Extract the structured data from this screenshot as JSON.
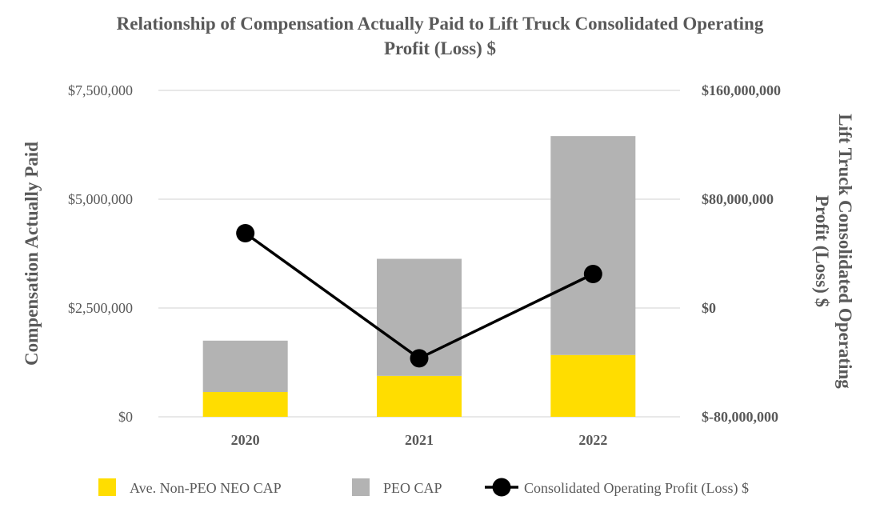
{
  "chart_data": {
    "type": "bar+line",
    "title_line1": "Relationship of Compensation Actually Paid to Lift Truck Consolidated Operating",
    "title_line2": "Profit (Loss) $",
    "categories": [
      "2020",
      "2021",
      "2022"
    ],
    "y_left": {
      "label": "Compensation Actually Paid",
      "range": [
        0,
        7500000
      ],
      "ticks": [
        0,
        2500000,
        5000000,
        7500000
      ],
      "tick_labels": [
        "$0",
        "$2,500,000",
        "$5,000,000",
        "$7,500,000"
      ]
    },
    "y_right": {
      "label_line1": "Lift Truck Consolidated Operating",
      "label_line2": "Profit (Loss) $",
      "range": [
        -80000000,
        160000000
      ],
      "ticks": [
        -80000000,
        0,
        80000000,
        160000000
      ],
      "tick_labels": [
        "$-80,000,000",
        "$0",
        "$80,000,000",
        "$160,000,000"
      ]
    },
    "series": [
      {
        "name": "Ave. Non-PEO NEO CAP",
        "kind": "bar",
        "axis": "left",
        "color": "#FFDD00",
        "values": [
          570000,
          940000,
          1420000
        ]
      },
      {
        "name": "PEO CAP",
        "kind": "bar",
        "axis": "left",
        "color": "#B3B3B3",
        "values": [
          1180000,
          2690000,
          5030000
        ]
      },
      {
        "name": "Consolidated Operating Profit (Loss) $",
        "kind": "line",
        "axis": "right",
        "color": "#000000",
        "values": [
          55000000,
          -37000000,
          25000000
        ]
      }
    ],
    "grid": true,
    "legend_position": "bottom"
  }
}
